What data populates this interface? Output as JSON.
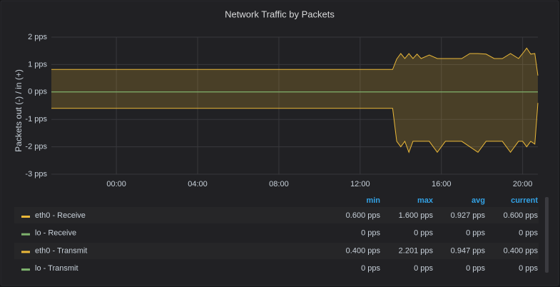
{
  "chart_data": {
    "type": "line",
    "title": "Network Traffic by Packets",
    "y_label": "Packets out (-) / in (+)",
    "x": [
      -3.2,
      13.6,
      13.8,
      14.0,
      14.2,
      14.4,
      14.6,
      14.8,
      15.0,
      15.4,
      15.8,
      16.2,
      16.6,
      17.0,
      17.4,
      17.8,
      18.2,
      18.6,
      19.0,
      19.4,
      19.8,
      20.0,
      20.2,
      20.4,
      20.6,
      20.75
    ],
    "xlim": [
      -3.2,
      20.75
    ],
    "xticks": [
      {
        "value": 0,
        "label": "00:00"
      },
      {
        "value": 4,
        "label": "04:00"
      },
      {
        "value": 8,
        "label": "08:00"
      },
      {
        "value": 12,
        "label": "12:00"
      },
      {
        "value": 16,
        "label": "16:00"
      },
      {
        "value": 20,
        "label": "20:00"
      }
    ],
    "ylim": [
      -3,
      2
    ],
    "yticks": [
      {
        "value": -3,
        "label": "-3 pps"
      },
      {
        "value": -2,
        "label": "-2 pps"
      },
      {
        "value": -1,
        "label": "-1 pps"
      },
      {
        "value": 0,
        "label": "0 pps"
      },
      {
        "value": 1,
        "label": "1 pps"
      },
      {
        "value": 2,
        "label": "2 pps"
      }
    ],
    "grid": true,
    "fill": true,
    "series": [
      {
        "name": "eth0 - Receive",
        "color": "#eab839",
        "values": [
          0.82,
          0.82,
          1.2,
          1.4,
          1.22,
          1.4,
          1.22,
          1.38,
          1.22,
          1.35,
          1.22,
          1.22,
          1.22,
          1.22,
          1.4,
          1.4,
          1.38,
          1.22,
          1.22,
          1.4,
          1.22,
          1.4,
          1.6,
          1.38,
          1.4,
          0.6
        ]
      },
      {
        "name": "lo - Receive",
        "color": "#7eb26d",
        "values": [
          0,
          0,
          0,
          0,
          0,
          0,
          0,
          0,
          0,
          0,
          0,
          0,
          0,
          0,
          0,
          0,
          0,
          0,
          0,
          0,
          0,
          0,
          0,
          0,
          0,
          0
        ]
      },
      {
        "name": "eth0 - Transmit",
        "color": "#eab839",
        "values": [
          -0.6,
          -0.6,
          -1.8,
          -2.0,
          -1.8,
          -2.2,
          -1.8,
          -1.8,
          -1.8,
          -1.8,
          -2.2,
          -1.8,
          -1.8,
          -1.8,
          -2.0,
          -2.2,
          -1.8,
          -1.8,
          -1.8,
          -2.2,
          -1.8,
          -1.8,
          -2.0,
          -1.8,
          -1.9,
          -0.4
        ]
      },
      {
        "name": "lo - Transmit",
        "color": "#7eb26d",
        "values": [
          0,
          0,
          0,
          0,
          0,
          0,
          0,
          0,
          0,
          0,
          0,
          0,
          0,
          0,
          0,
          0,
          0,
          0,
          0,
          0,
          0,
          0,
          0,
          0,
          0,
          0
        ]
      }
    ],
    "legend": {
      "columns": [
        "min",
        "max",
        "avg",
        "current"
      ],
      "rows": [
        [
          "0.600 pps",
          "1.600 pps",
          "0.927 pps",
          "0.600 pps"
        ],
        [
          "0 pps",
          "0 pps",
          "0 pps",
          "0 pps"
        ],
        [
          "0.400 pps",
          "2.201 pps",
          "0.947 pps",
          "0.400 pps"
        ],
        [
          "0 pps",
          "0 pps",
          "0 pps",
          "0 pps"
        ]
      ]
    }
  }
}
